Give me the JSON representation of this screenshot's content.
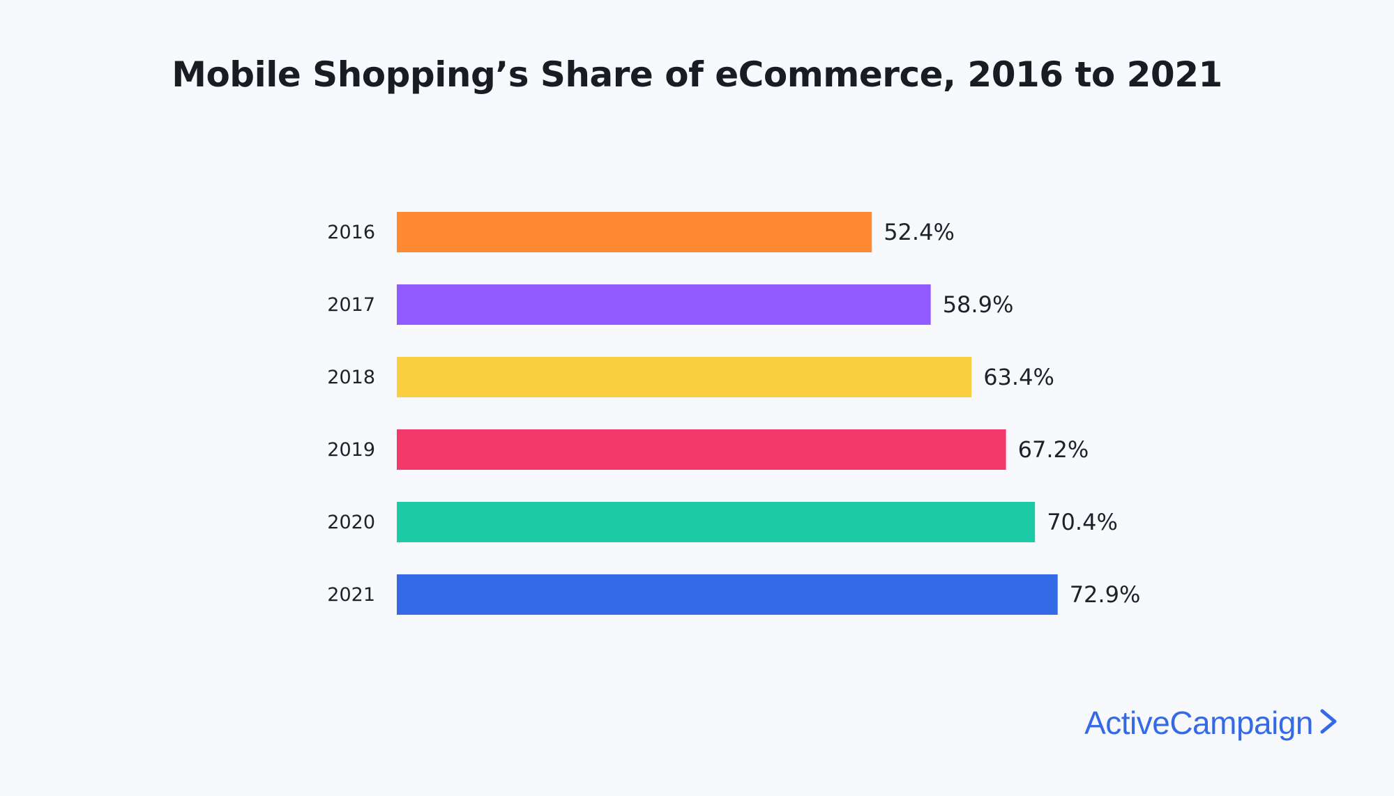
{
  "chart_data": {
    "type": "bar",
    "orientation": "horizontal",
    "title": "Mobile Shopping’s Share of eCommerce, 2016 to 2021",
    "categories": [
      "2016",
      "2017",
      "2018",
      "2019",
      "2020",
      "2021"
    ],
    "values": [
      52.4,
      58.9,
      63.4,
      67.2,
      70.4,
      72.9
    ],
    "value_labels": [
      "52.4%",
      "58.9%",
      "63.4%",
      "67.2%",
      "70.4%",
      "72.9%"
    ],
    "colors": [
      "#ff8833",
      "#915bff",
      "#f9ce3f",
      "#f3386a",
      "#1ccba5",
      "#356ae6"
    ],
    "xlim": [
      0,
      100
    ],
    "xlabel": "",
    "ylabel": "",
    "grid": false,
    "legend": "none"
  },
  "brand": {
    "name": "ActiveCampaign",
    "color": "#356ae6",
    "icon": "chevron-right-icon"
  }
}
